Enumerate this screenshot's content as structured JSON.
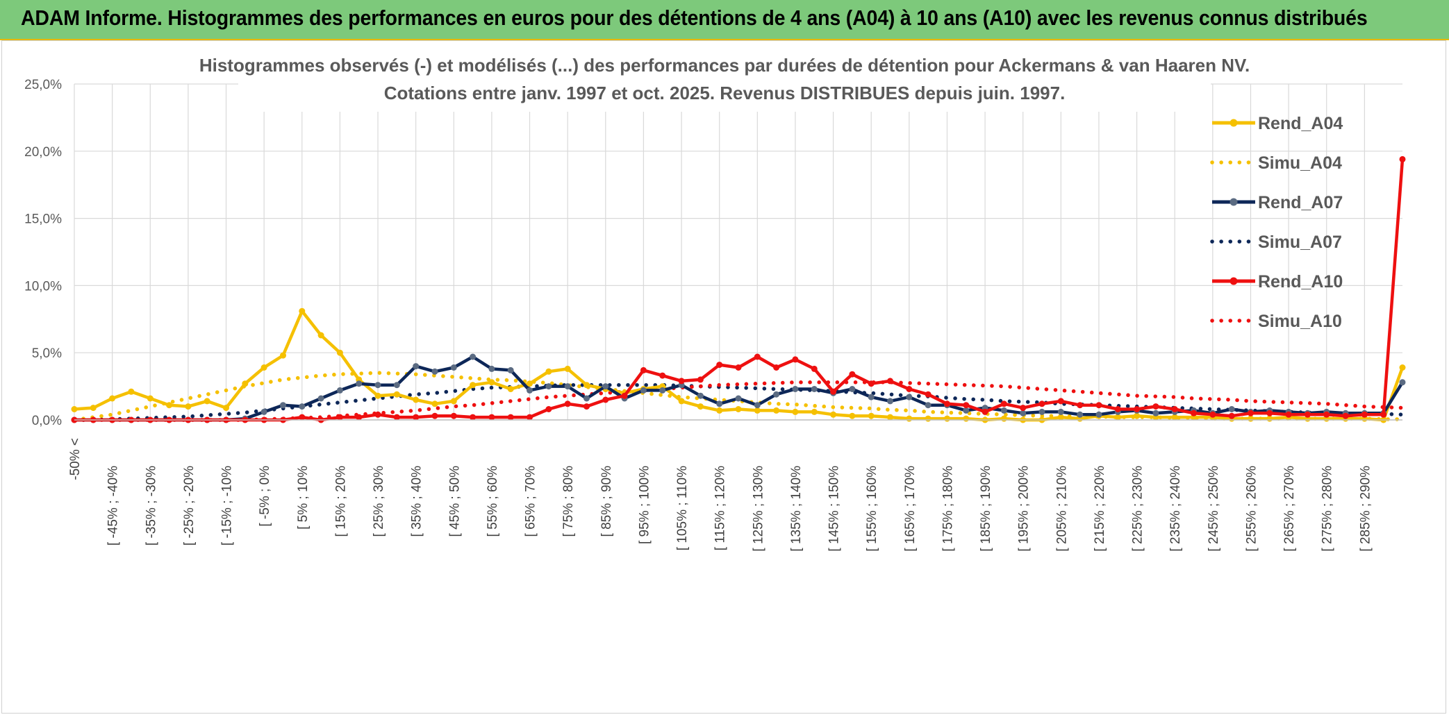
{
  "banner": {
    "title": "ADAM Informe. Histogrammes des performances en euros pour des détentions de 4 ans (A04) à 10 ans (A10) avec les revenus connus distribués"
  },
  "colors": {
    "banner_bg": "#7dc97b",
    "A04": "#f5c000",
    "A07": "#0d2758",
    "A07_marker": "#5b6b82",
    "A10": "#ee1010",
    "grid": "#d9d9d9"
  },
  "chart_data": {
    "type": "line",
    "title_lines": [
      "Histogrammes observés (-) et modélisés (...) des performances par durées de détention pour Ackermans & van Haaren NV.",
      "Cotations entre janv. 1997 et oct. 2025. Revenus DISTRIBUES depuis juin. 1997."
    ],
    "ylim": [
      0,
      25
    ],
    "yticks": [
      "0,0%",
      "5,0%",
      "10,0%",
      "15,0%",
      "20,0%",
      "25,0%"
    ],
    "xticks": [
      "-50% <",
      "[ -45% ; -40%",
      "[ -35% ; -30%",
      "[ -25% ; -20%",
      "[ -15% ; -10%",
      "[ -5% ; 0%",
      "[ 5% ; 10%",
      "[ 15% ; 20%",
      "[ 25% ; 30%",
      "[ 35% ; 40%",
      "[ 45% ; 50%",
      "[ 55% ; 60%",
      "[ 65% ; 70%",
      "[ 75% ; 80%",
      "[ 85% ; 90%",
      "[ 95% ; 100%",
      "[ 105% ; 110%",
      "[ 115% ; 120%",
      "[ 125% ; 130%",
      "[ 135% ; 140%",
      "[ 145% ; 150%",
      "[ 155% ; 160%",
      "[ 165% ; 170%",
      "[ 175% ; 180%",
      "[ 185% ; 190%",
      "[ 195% ; 200%",
      "[ 205% ; 210%",
      "[ 215% ; 220%",
      "[ 225% ; 230%",
      "[ 235% ; 240%",
      "[ 245% ; 250%",
      "[ 255% ; 260%",
      "[ 265% ; 270%",
      "[ 275% ; 280%",
      "[ 285% ; 290%"
    ],
    "grid": true,
    "legend_position": "right",
    "series": [
      {
        "name": "Rend_A04",
        "style": "solid",
        "color": "#f5c000",
        "values": [
          0.8,
          0.9,
          1.6,
          2.1,
          1.6,
          1.1,
          1.0,
          1.4,
          0.9,
          2.7,
          3.9,
          4.8,
          8.1,
          6.3,
          5.0,
          3.0,
          1.8,
          1.9,
          1.5,
          1.2,
          1.4,
          2.6,
          2.8,
          2.3,
          2.7,
          3.6,
          3.8,
          2.6,
          2.3,
          2.0,
          2.3,
          2.5,
          1.4,
          1.0,
          0.7,
          0.8,
          0.7,
          0.7,
          0.6,
          0.6,
          0.4,
          0.3,
          0.3,
          0.2,
          0.1,
          0.1,
          0.1,
          0.1,
          0.0,
          0.1,
          0.0,
          0.0,
          0.2,
          0.1,
          0.3,
          0.2,
          0.3,
          0.2,
          0.2,
          0.2,
          0.2,
          0.1,
          0.1,
          0.1,
          0.2,
          0.1,
          0.1,
          0.1,
          0.1,
          0.0,
          3.9
        ]
      },
      {
        "name": "Simu_A04",
        "style": "dotted",
        "color": "#f5c000",
        "values": [
          0.0,
          0.2,
          0.4,
          0.7,
          1.0,
          1.3,
          1.6,
          1.9,
          2.2,
          2.5,
          2.75,
          3.0,
          3.15,
          3.3,
          3.4,
          3.45,
          3.5,
          3.45,
          3.4,
          3.3,
          3.2,
          3.1,
          3.0,
          2.95,
          2.85,
          2.75,
          2.6,
          2.45,
          2.3,
          2.15,
          2.0,
          1.85,
          1.7,
          1.6,
          1.5,
          1.4,
          1.3,
          1.2,
          1.15,
          1.05,
          0.95,
          0.9,
          0.85,
          0.75,
          0.7,
          0.6,
          0.55,
          0.5,
          0.45,
          0.4,
          0.35,
          0.3,
          0.3,
          0.25,
          0.25,
          0.2,
          0.2,
          0.2,
          0.15,
          0.15,
          0.1,
          0.1,
          0.1,
          0.1,
          0.1,
          0.1,
          0.1,
          0.1,
          0.1,
          0.05,
          0.05
        ]
      },
      {
        "name": "Rend_A07",
        "style": "solid",
        "color": "#0d2758",
        "values": [
          0.0,
          0.0,
          0.0,
          0.0,
          0.0,
          0.0,
          0.0,
          0.0,
          0.0,
          0.1,
          0.6,
          1.1,
          1.0,
          1.6,
          2.2,
          2.7,
          2.6,
          2.6,
          4.0,
          3.6,
          3.9,
          4.7,
          3.8,
          3.7,
          2.2,
          2.5,
          2.5,
          1.6,
          2.5,
          1.6,
          2.2,
          2.2,
          2.6,
          1.8,
          1.2,
          1.6,
          1.1,
          1.9,
          2.3,
          2.3,
          2.0,
          2.3,
          1.7,
          1.4,
          1.7,
          1.1,
          1.1,
          0.7,
          0.9,
          0.7,
          0.5,
          0.6,
          0.6,
          0.4,
          0.4,
          0.6,
          0.7,
          0.5,
          0.6,
          0.7,
          0.5,
          0.8,
          0.6,
          0.7,
          0.6,
          0.5,
          0.6,
          0.5,
          0.5,
          0.5,
          2.8
        ]
      },
      {
        "name": "Simu_A07",
        "style": "dotted",
        "color": "#0d2758",
        "values": [
          0.0,
          0.0,
          0.05,
          0.1,
          0.15,
          0.2,
          0.25,
          0.35,
          0.45,
          0.55,
          0.7,
          0.85,
          1.0,
          1.15,
          1.3,
          1.45,
          1.6,
          1.75,
          1.9,
          2.0,
          2.15,
          2.3,
          2.4,
          2.45,
          2.5,
          2.55,
          2.6,
          2.6,
          2.6,
          2.6,
          2.6,
          2.6,
          2.55,
          2.5,
          2.45,
          2.4,
          2.35,
          2.3,
          2.25,
          2.2,
          2.15,
          2.05,
          2.0,
          1.9,
          1.8,
          1.75,
          1.65,
          1.55,
          1.5,
          1.4,
          1.35,
          1.3,
          1.2,
          1.15,
          1.1,
          1.05,
          1.0,
          0.95,
          0.9,
          0.85,
          0.8,
          0.75,
          0.7,
          0.65,
          0.6,
          0.55,
          0.5,
          0.5,
          0.45,
          0.45,
          0.4
        ]
      },
      {
        "name": "Rend_A10",
        "style": "solid",
        "color": "#ee1010",
        "values": [
          0.0,
          0.0,
          0.0,
          0.0,
          0.0,
          0.0,
          0.0,
          0.0,
          0.0,
          0.0,
          0.0,
          0.0,
          0.2,
          0.0,
          0.2,
          0.2,
          0.4,
          0.2,
          0.2,
          0.3,
          0.3,
          0.2,
          0.2,
          0.2,
          0.2,
          0.8,
          1.2,
          1.0,
          1.5,
          1.8,
          3.7,
          3.3,
          2.9,
          3.0,
          4.1,
          3.9,
          4.7,
          3.9,
          4.5,
          3.8,
          2.1,
          3.4,
          2.7,
          2.9,
          2.3,
          1.9,
          1.2,
          1.1,
          0.6,
          1.2,
          0.9,
          1.2,
          1.4,
          1.1,
          1.1,
          0.8,
          0.8,
          1.0,
          0.8,
          0.5,
          0.4,
          0.3,
          0.5,
          0.5,
          0.4,
          0.4,
          0.4,
          0.3,
          0.4,
          0.4,
          19.4
        ]
      },
      {
        "name": "Simu_A10",
        "style": "dotted",
        "color": "#ee1010",
        "values": [
          0.0,
          0.0,
          0.0,
          0.0,
          0.0,
          0.0,
          0.0,
          0.0,
          0.0,
          0.0,
          0.05,
          0.1,
          0.15,
          0.2,
          0.3,
          0.4,
          0.5,
          0.6,
          0.7,
          0.85,
          1.0,
          1.1,
          1.25,
          1.4,
          1.55,
          1.7,
          1.8,
          1.9,
          2.0,
          2.1,
          2.2,
          2.3,
          2.4,
          2.5,
          2.6,
          2.65,
          2.7,
          2.75,
          2.8,
          2.8,
          2.8,
          2.8,
          2.8,
          2.8,
          2.75,
          2.7,
          2.65,
          2.6,
          2.55,
          2.5,
          2.4,
          2.3,
          2.2,
          2.1,
          2.0,
          1.9,
          1.8,
          1.75,
          1.7,
          1.6,
          1.55,
          1.5,
          1.4,
          1.35,
          1.3,
          1.25,
          1.2,
          1.1,
          1.0,
          0.95,
          0.9
        ]
      }
    ]
  }
}
